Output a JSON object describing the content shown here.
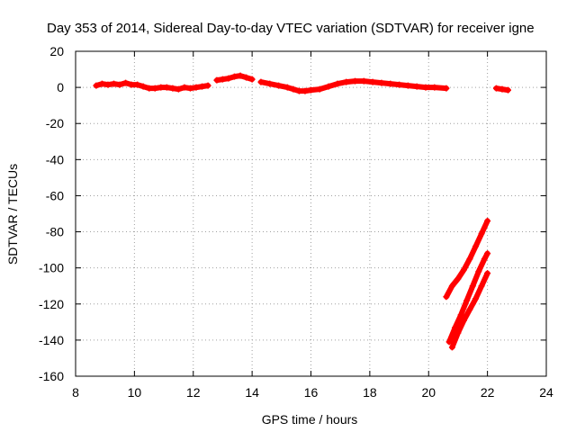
{
  "chart_data": {
    "type": "scatter",
    "title": "Day 353 of 2014, Sidereal Day-to-day VTEC variation (SDTVAR) for receiver igne",
    "xlabel": "GPS time / hours",
    "ylabel": "SDTVAR / TECUs",
    "xlim": [
      8,
      24
    ],
    "ylim": [
      -160,
      20
    ],
    "x_ticks": [
      8,
      10,
      12,
      14,
      16,
      18,
      20,
      22,
      24
    ],
    "y_ticks": [
      -160,
      -140,
      -120,
      -100,
      -80,
      -60,
      -40,
      -20,
      0,
      20
    ],
    "grid": true,
    "legend": "none",
    "marker": "plus",
    "color": "#ff0000",
    "series": [
      {
        "x": [
          8.7,
          8.9,
          9.1,
          9.3,
          9.5,
          9.7,
          9.9,
          10.1,
          10.3,
          10.5,
          10.7,
          10.9,
          11.1,
          11.3,
          11.5,
          11.7,
          11.9,
          12.1,
          12.3,
          12.5
        ],
        "y": [
          1,
          2,
          1.5,
          2,
          1.5,
          2.5,
          1.5,
          1.5,
          0.5,
          -0.5,
          -0.5,
          0,
          0,
          -0.5,
          -1,
          0,
          -0.5,
          0,
          0.5,
          1
        ]
      },
      {
        "x": [
          12.8,
          13.0,
          13.2,
          13.4,
          13.6,
          13.8,
          14.0
        ],
        "y": [
          4,
          4.5,
          5,
          6,
          6.5,
          5.5,
          4.5
        ]
      },
      {
        "x": [
          14.3,
          14.6,
          14.9,
          15.2,
          15.4,
          15.6,
          15.8,
          16.0,
          16.3,
          16.6,
          16.9,
          17.2,
          17.5,
          17.8,
          18.1,
          18.4,
          18.7,
          19.0,
          19.3,
          19.6,
          19.9,
          20.2,
          20.6
        ],
        "y": [
          3,
          2,
          1,
          0,
          -1,
          -2,
          -2,
          -1.5,
          -1,
          0.5,
          2,
          3,
          3.5,
          3.5,
          3,
          2.5,
          2,
          1.5,
          1,
          0.5,
          0,
          0,
          -0.5
        ]
      },
      {
        "x": [
          22.3,
          22.5,
          22.7
        ],
        "y": [
          -0.5,
          -1,
          -1.5
        ]
      },
      {
        "x": [
          20.6,
          20.8,
          21.0,
          21.2,
          21.4,
          21.6,
          21.8,
          22.0
        ],
        "y": [
          -116,
          -110,
          -106,
          -101,
          -95,
          -88,
          -81,
          -74
        ]
      },
      {
        "x": [
          20.7,
          20.9,
          21.1,
          21.3,
          21.5,
          21.7,
          21.9,
          22.0
        ],
        "y": [
          -141,
          -133,
          -126,
          -118,
          -110,
          -102,
          -95,
          -92
        ]
      },
      {
        "x": [
          20.8,
          21.0,
          21.2,
          21.4,
          21.6,
          21.8,
          22.0
        ],
        "y": [
          -144,
          -136,
          -129,
          -123,
          -117,
          -110,
          -103
        ]
      }
    ]
  }
}
